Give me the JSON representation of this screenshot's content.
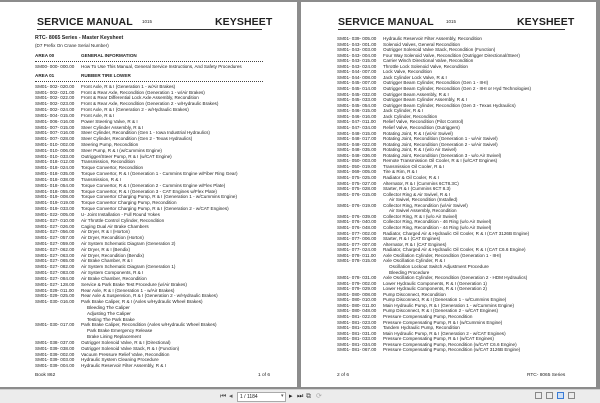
{
  "pages": [
    {
      "header": {
        "left": "SERVICE MANUAL",
        "number": "1015",
        "right": "KEYSHEET"
      },
      "title": "RTC- 8065 Series -   Master Keysheet",
      "subtitle": "(D7 Prefix On Crane Serial Number)",
      "areas": [
        {
          "code": "AREA   00",
          "label": "GENERAL INFORMATION",
          "entries": [
            {
              "code": "SM00- 000- 000.00",
              "desc": "How To Use This Manual, General Service Instructions, And Safety Procedures"
            }
          ]
        },
        {
          "code": "AREA   01",
          "label": "RUBBER TIRE LOWER",
          "entries": [
            {
              "code": "SM01- 002- 020.00",
              "desc": "Front Axle, R & I (Generation 1 -   w/Air Brakes)"
            },
            {
              "code": "SM01- 002- 021.00",
              "desc": "Front & Rear Axle, Recondition (Generation 1 -   w/Air Brakes)"
            },
            {
              "code": "SM01- 002- 022.00",
              "desc": "Front & Rear Differential Lock Axle Assembly, Recondition"
            },
            {
              "code": "SM01- 002- 023.00",
              "desc": "Front & Rear Axle, Recondition (Generation 2 -   w/Hydraulic Brakes)"
            },
            {
              "code": "SM01- 002- 024.00",
              "desc": "Front Axle, R & I (Generation 2 -   w/Hydraulic Brakes)"
            },
            {
              "code": "SM01- 004- 015.00",
              "desc": "Front Axle, R & I"
            },
            {
              "code": "SM01- 006- 016.00",
              "desc": "Power Steering Valve, R & I"
            },
            {
              "code": "SM01- 007- 015.00",
              "desc": "Steer Cylinder Assembly, R & I"
            },
            {
              "code": "SM01- 007- 016.00",
              "desc": "Steer Cylinder, Recondition (Gen 1 -   Iowa Industrial Hydraulics)"
            },
            {
              "code": "SM01- 007- 028.00",
              "desc": "Steer Cylinder, Recondition (Gen 2 -   Texas Hydraulics)"
            },
            {
              "code": "SM01- 010- 002.00",
              "desc": "Steering Pump, Recondition"
            },
            {
              "code": "SM01- 010- 006.00",
              "desc": "Steer Pump, R & I (w/Cummins Engine)"
            },
            {
              "code": "SM01- 010- 033.00",
              "desc": "Outrigger/Steer Pump, R & I (w/CAT Engine)"
            },
            {
              "code": "SM01- 018- 012.00",
              "desc": "Transmission, Recondition"
            },
            {
              "code": "SM01- 018- 024.00",
              "desc": "Torque Convertor, Recondition"
            },
            {
              "code": "SM01- 018- 035.00",
              "desc": "Torque Convertor, R & I (Generation 1 -   Cummins Engine w/Fiber Ring Gear)"
            },
            {
              "code": "SM01- 018- 038.00",
              "desc": "Transmission, R & I"
            },
            {
              "code": "SM01- 018- 054.00",
              "desc": "Torque Convertor, R & I (Generation 2 -   Cummins Engine w/Flex Plate)"
            },
            {
              "code": "SM01- 018- 055.00",
              "desc": "Torque Convertor, R & I (Generation 3 -   CAT Engines w/Flex Plate)"
            },
            {
              "code": "SM01- 019- 008.00",
              "desc": "Torque Convertor Charging Pump, R & I (Generation 1 -   w/Cummins Engine)"
            },
            {
              "code": "SM01- 019- 019.00",
              "desc": "Torque Convertor Charging Pump, Recondition"
            },
            {
              "code": "SM01- 019- 033.00",
              "desc": "Torque Convertor Charging Pump, R & I (Generation 2 -   w/CAT Engines)"
            },
            {
              "code": "SM01- 022- 005.00",
              "desc": "U- Joint Installation -   Full Round Yokes"
            },
            {
              "code": "SM01- 027- 010.00",
              "desc": "Air Throttle Control Cylinder, Recondition"
            },
            {
              "code": "SM01- 027- 026.00",
              "desc": "Caging Dual Air Brake Chambers"
            },
            {
              "code": "SM01- 027- 056.00",
              "desc": "Air Dryer, R & I (Horton)"
            },
            {
              "code": "SM01- 027- 057.00",
              "desc": "Air Dryer, Recondition (Horton)"
            },
            {
              "code": "SM01- 027- 059.00",
              "desc": "Air System Schematic Diagram (Generation 2)"
            },
            {
              "code": "SM01- 027- 062.00",
              "desc": "Air Dryer, R & I (Bendix)"
            },
            {
              "code": "SM01- 027- 063.00",
              "desc": "Air Dryer, Recondition (Bendix)"
            },
            {
              "code": "SM01- 027- 065.00",
              "desc": "Air Brake Chamber, R & I"
            },
            {
              "code": "SM01- 027- 082.00",
              "desc": "Air System Schematic Diagram (Generation 1)"
            },
            {
              "code": "SM01- 027- 083.00",
              "desc": "Air System Components, R & I"
            },
            {
              "code": "SM01- 027- 084.00",
              "desc": "Air Brake Chamber, Recondition"
            },
            {
              "code": "SM01- 027- 128.00",
              "desc": "Service & Park Brake Test Procedure (w/Air Brakes)"
            },
            {
              "code": "SM01- 029- 011.00",
              "desc": "Rear Axle, R & I (Generation 1 -   w/Air Brakes)"
            },
            {
              "code": "SM01- 029- 025.00",
              "desc": "Rear Axle & Suspension, R & I (Generation 2 -   w/Hydraulic Brakes)"
            },
            {
              "code": "SM01- 030- 016.00",
              "desc": "Park Brake Caliper, R & I (Axles w/Hydraulic Wheel Brakes)"
            },
            {
              "code": "",
              "desc": "Bleeding The Caliper"
            },
            {
              "code": "",
              "desc": "Adjusting The Caliper"
            },
            {
              "code": "",
              "desc": "Testing The Park Brake"
            },
            {
              "code": "SM01- 030- 017.00",
              "desc": "Park Brake Caliper, Recondition (Axles w/Hydraulic Wheel Brakes)"
            },
            {
              "code": "",
              "desc": "Park Brake Emergency Release"
            },
            {
              "code": "",
              "desc": "Brake Lining Replacement"
            },
            {
              "code": "SM01- 038- 037.00",
              "desc": "Outrigger Solenoid Valve, R & I (Directional)"
            },
            {
              "code": "SM01- 039- 038.00",
              "desc": "Outrigger Solenoid Valve Stack, R & I (Function)"
            },
            {
              "code": "SM01- 039- 002.00",
              "desc": "Vacuum Pressure Relief Valve, Recondition"
            },
            {
              "code": "SM01- 039- 003.00",
              "desc": "Hydraulic System Cleaning Procedure"
            },
            {
              "code": "SM01- 039- 004.00",
              "desc": "Hydraulic Reservoir Filter Assembly, R & I"
            }
          ]
        }
      ],
      "footer": {
        "left": "Book 862",
        "right": "1 of 6"
      }
    },
    {
      "header": {
        "left": "SERVICE MANUAL",
        "number": "1015",
        "right": "KEYSHEET"
      },
      "entries": [
        {
          "code": "SM01- 039- 005.00",
          "desc": "Hydraulic Reservoir Filter Assembly, Recondition"
        },
        {
          "code": "SM01- 043- 001.00",
          "desc": "Solenoid Valves, General Recondition"
        },
        {
          "code": "SM01- 043- 003.00",
          "desc": "Outrigger Solenoid Valve Stack, Recondition (Function)"
        },
        {
          "code": "SM01- 043- 004.00",
          "desc": "Four Way Solenoid Valve, Recondition (Outrigger Directional/Steer)"
        },
        {
          "code": "SM01- 043- 015.00",
          "desc": "Carrier Winch Directional Valve, Recondition"
        },
        {
          "code": "SM01- 043- 024.00",
          "desc": "Throttle Lock Solenoid Valve, Recondition"
        },
        {
          "code": "SM01- 044- 007.00",
          "desc": "Lock Valve, Recondition"
        },
        {
          "code": "SM01- 044- 008.00",
          "desc": "Jack Cylinder Lock Valve, R & I"
        },
        {
          "code": "SM01- 045- 007.00",
          "desc": "Outrigger Beam Cylinder, Recondition (Gen 1 -   IIHI)"
        },
        {
          "code": "SM01- 045- 014.00",
          "desc": "Outrigger Beam Cylinder, Recondition (Gen 2 -   IIHI or Hyd Technologies)"
        },
        {
          "code": "SM01- 045- 032.00",
          "desc": "Outrigger Beam Assembly, R & I"
        },
        {
          "code": "SM01- 045- 033.00",
          "desc": "Outrigger Beam Cylinder Assembly, R & I"
        },
        {
          "code": "SM01- 045- 054.00",
          "desc": "Outrigger Beam Cylinder, Recondition (Gen 3 -   Texas Hydraulics)"
        },
        {
          "code": "SM01- 046- 015.00",
          "desc": "Jack Cylinder, R & I"
        },
        {
          "code": "SM01- 046- 016.00",
          "desc": "Jack Cylinder, Recondition"
        },
        {
          "code": "SM01- 047- 011.00",
          "desc": "Relief Valve, Recondition (Pilot Control)"
        },
        {
          "code": "SM01- 047- 034.00",
          "desc": "Relief Valve, Recondition (Outriggers)"
        },
        {
          "code": "SM01- 048- 015.00",
          "desc": "Rotating Joint, R & I (w/Air Swivel)"
        },
        {
          "code": "SM01- 048- 017.00",
          "desc": "Rotating Joint, Recondition (Generation 1 -   w/Air Swivel)"
        },
        {
          "code": "SM01- 048- 022.00",
          "desc": "Rotating Joint, Recondition (Generation 2 -   w/Air Swivel)"
        },
        {
          "code": "SM01- 048- 035.00",
          "desc": "Rotating Joint, R & I (w/o Air Swivel)"
        },
        {
          "code": "SM01- 048- 036.00",
          "desc": "Rotating Joint, Recondition (Generation 3 -   w/o Air Swivel)"
        },
        {
          "code": "SM01- 050- 003.00",
          "desc": "Remote Transmission Oil Cooler, R & I (w/CAT Engines)"
        },
        {
          "code": "SM01- 050- 019.00",
          "desc": "Transmission Oil Cooler, R & I"
        },
        {
          "code": "SM01- 069- 005.00",
          "desc": "Tire & Rim, R & I"
        },
        {
          "code": "SM01- 075- 025.00",
          "desc": "Radiator & Oil Cooler, R & I"
        },
        {
          "code": "SM01- 075- 027.00",
          "desc": "Alternator, R & I (Cummins 6CT8.3C)"
        },
        {
          "code": "SM01- 075- 028.00",
          "desc": "Starter, R & I (Cummins 6CT 8.3)"
        },
        {
          "code": "SM01- 076- 015.00",
          "desc": "Collector Ring & Air Swivel, R & I"
        },
        {
          "code": "",
          "desc": "Air Swivel, Recondition (Installed)"
        },
        {
          "code": "SM01- 076- 019.00",
          "desc": "Collector Ring, Recondition (w/Air Swivel)"
        },
        {
          "code": "",
          "desc": "Air Swivel Assembly, Recondition"
        },
        {
          "code": "SM01- 076- 039.00",
          "desc": "Collector Ring, R & I (w/o Air Swivel)"
        },
        {
          "code": "SM01- 076- 040.00",
          "desc": "Collector Ring, Recondition -   46 Ring (w/o Air Swivel)"
        },
        {
          "code": "SM01- 076- 048.00",
          "desc": "Collector Ring, Recondition -   44 Ring (w/o Air Swivel)"
        },
        {
          "code": "SM01- 077- 002.00",
          "desc": "Radiator, Charged Air & Hydraulic Oil Cooler, R & I (CAT 3126B Engine)"
        },
        {
          "code": "SM01- 077- 006.00",
          "desc": "Starter, R & I (CAT Engines)"
        },
        {
          "code": "SM01- 077- 007.00",
          "desc": "Alternator, R & I (CAT Engines)"
        },
        {
          "code": "SM01- 077- 024.00",
          "desc": "Radiator, Charged Air & Hydraulic Oil Cooler, R & I (CAT C6.6 Engine)"
        },
        {
          "code": "SM01- 078- 011.00",
          "desc": "Axle Oscillation Cylinder, Recondition (Generation 1 -   IIHI)"
        },
        {
          "code": "SM01- 078- 015.00",
          "desc": "Axle Oscillation Cylinder, R & I"
        },
        {
          "code": "",
          "desc": "Oscillation Lockout Switch Adjustment Procedure"
        },
        {
          "code": "",
          "desc": "Bleeding Procedure"
        },
        {
          "code": "SM01- 078- 031.00",
          "desc": "Axle Oscillation Cylinder, Recondition (Generation 2 -   HDM Hydraulics)"
        },
        {
          "code": "SM01- 079- 002.00",
          "desc": "Lower Hydraulic Components, R & I (Generation 1)"
        },
        {
          "code": "SM01- 079- 029.00",
          "desc": "Lower Hydraulic Components, R & I (Generation 2)"
        },
        {
          "code": "SM01- 080- 008.00",
          "desc": "Pump Disconnect, Recondition"
        },
        {
          "code": "SM01- 080- 010.00",
          "desc": "Pump Disconnect, R & I (Generation 1 -   w/Cummins Engine)"
        },
        {
          "code": "SM01- 080- 011.00",
          "desc": "Main Hydraulic Pump, R & I (Generation 1 -   w/Cummins Engine)"
        },
        {
          "code": "SM01- 080- 048.00",
          "desc": "Pump Disconnect, R & I (Generation 2 -   w/CAT Engines)"
        },
        {
          "code": "SM01- 081- 022.00",
          "desc": "Pressure Compensating Pump, Recondition"
        },
        {
          "code": "SM01- 081- 023.00",
          "desc": "Pressure Compensating Pump, R & I (w/Cummins Engine)"
        },
        {
          "code": "SM01- 081- 025.00",
          "desc": "Tandem Hydraulic Pump, Recondition"
        },
        {
          "code": "SM01- 081- 031.00",
          "desc": "Main Hydraulic Pump, R & I (Generation 2 -   w/CAT Engines)"
        },
        {
          "code": "SM01- 081- 033.00",
          "desc": "Pressure Compensating Pump, R & I (w/CAT Engines)"
        },
        {
          "code": "SM01- 081- 034.00",
          "desc": "Pressure Compensating Pump, Recondition (w/CAT C6.6 Engine)"
        },
        {
          "code": "SM01- 081- 067.00",
          "desc": "Pressure Compensating Pump, Recondition (w/CAT 3126B  Engine)"
        }
      ],
      "footer": {
        "left": "2 of 6",
        "right": "RTC- 8065 Series"
      }
    }
  ],
  "toolbar": {
    "page_field": "1 / 1184",
    "icons": [
      "first-page-icon",
      "prev-page-icon",
      "dropdown-icon",
      "next-page-icon",
      "last-page-icon",
      "copy-icon",
      "rotate-icon",
      "single-page-view-icon",
      "continuous-view-icon",
      "two-page-view-icon",
      "scroll-view-icon"
    ],
    "active_view": "two-page-view-icon"
  }
}
